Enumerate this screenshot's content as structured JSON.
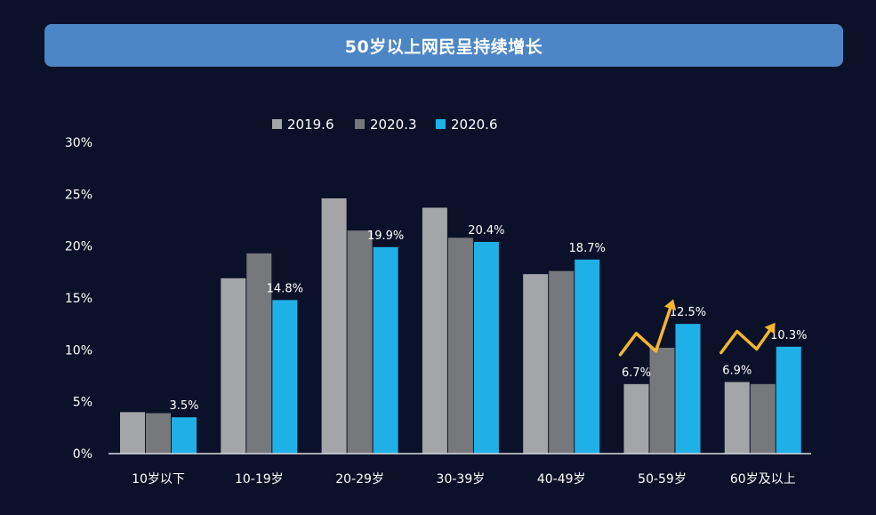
{
  "title": "50岁以上网民呈持续增长",
  "colors": {
    "background": "#0b1128",
    "banner": "#4d86c6",
    "trend_arrow": "#f5b62e"
  },
  "chart_data": {
    "type": "bar",
    "title": "50岁以上网民呈持续增长",
    "xlabel": "",
    "ylabel": "",
    "ylim": [
      0,
      30
    ],
    "yticks": [
      0,
      5,
      10,
      15,
      20,
      25,
      30
    ],
    "ytick_labels": [
      "0%",
      "5%",
      "10%",
      "15%",
      "20%",
      "25%",
      "30%"
    ],
    "legend_position": "top-center",
    "grid": false,
    "categories": [
      "10岁以下",
      "10-19岁",
      "20-29岁",
      "30-39岁",
      "40-49岁",
      "50-59岁",
      "60岁及以上"
    ],
    "series": [
      {
        "name": "2019.6",
        "color": "#a3a5a8",
        "values": [
          4.0,
          16.9,
          24.6,
          23.7,
          17.3,
          6.7,
          6.9
        ]
      },
      {
        "name": "2020.3",
        "color": "#77787c",
        "values": [
          3.9,
          19.3,
          21.5,
          20.8,
          17.6,
          10.2,
          6.7
        ]
      },
      {
        "name": "2020.6",
        "color": "#1fb0e8",
        "values": [
          3.5,
          14.8,
          19.9,
          20.4,
          18.7,
          12.5,
          10.3
        ]
      }
    ],
    "data_labels": [
      {
        "category": 0,
        "series": 2,
        "text": "3.5%"
      },
      {
        "category": 1,
        "series": 2,
        "text": "14.8%"
      },
      {
        "category": 2,
        "series": 2,
        "text": "19.9%"
      },
      {
        "category": 3,
        "series": 2,
        "text": "20.4%"
      },
      {
        "category": 4,
        "series": 2,
        "text": "18.7%"
      },
      {
        "category": 5,
        "series": 0,
        "text": "6.7%"
      },
      {
        "category": 5,
        "series": 2,
        "text": "12.5%"
      },
      {
        "category": 6,
        "series": 0,
        "text": "6.9%"
      },
      {
        "category": 6,
        "series": 2,
        "text": "10.3%"
      }
    ],
    "annotations": [
      {
        "type": "trend-arrow",
        "category": 5
      },
      {
        "type": "trend-arrow",
        "category": 6
      }
    ]
  }
}
